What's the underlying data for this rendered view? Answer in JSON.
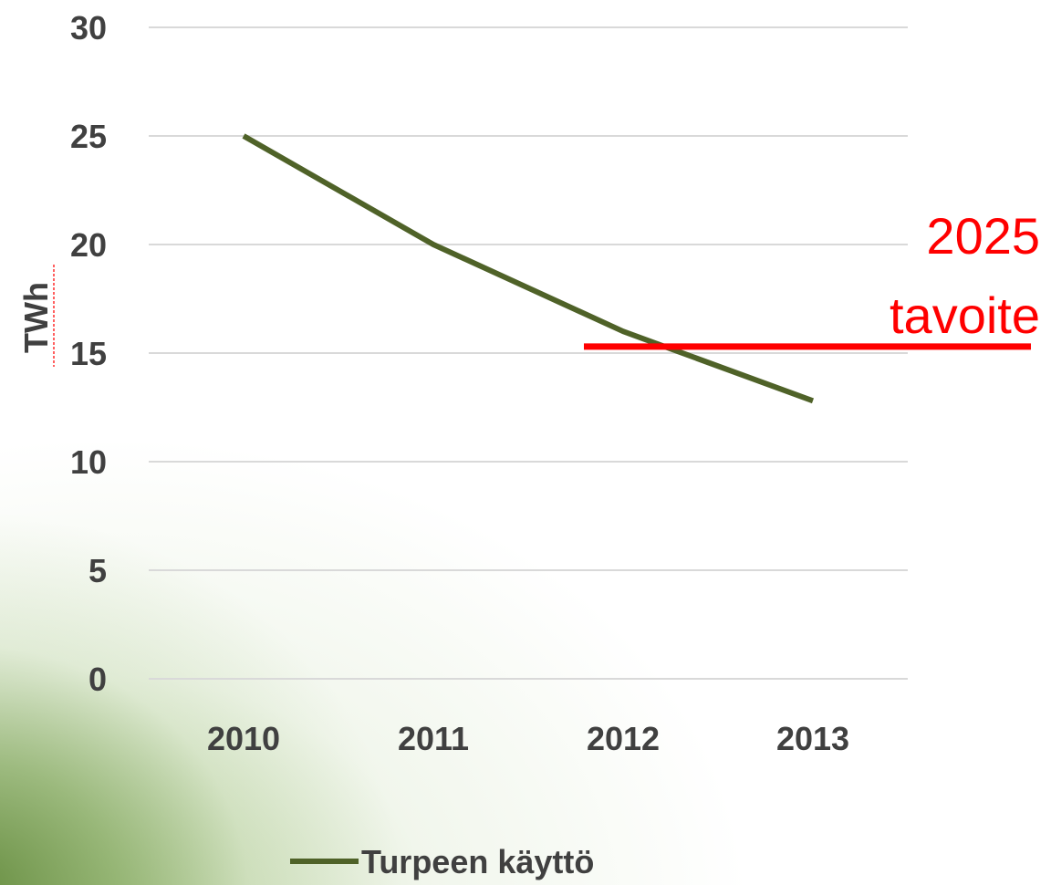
{
  "chart_data": {
    "type": "line",
    "categories": [
      "2010",
      "2011",
      "2012",
      "2013"
    ],
    "series": [
      {
        "name": "Turpeen käyttö",
        "values": [
          25,
          20,
          16,
          12.8
        ],
        "color": "#4f6228"
      }
    ],
    "ylabel": "TWh",
    "ylim": [
      0,
      30
    ],
    "yticks": [
      "0",
      "5",
      "10",
      "15",
      "20",
      "25",
      "30"
    ],
    "grid": true,
    "legend": "bottom",
    "target": {
      "value": 15.3,
      "label_line1": "2025",
      "label_line2": "tavoite",
      "color": "#ff0000"
    }
  }
}
